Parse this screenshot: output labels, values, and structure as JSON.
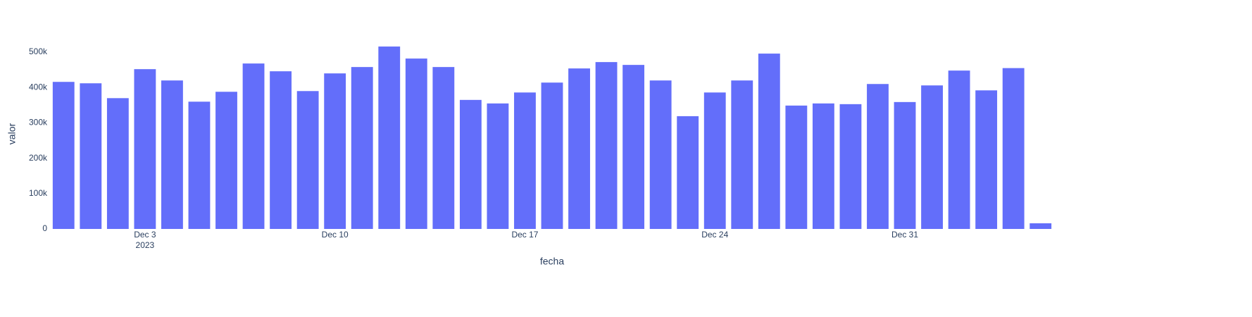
{
  "chart_data": {
    "type": "bar",
    "x_label": "fecha",
    "y_label": "valor",
    "x": [
      "2023-11-30",
      "2023-12-01",
      "2023-12-02",
      "2023-12-03",
      "2023-12-04",
      "2023-12-05",
      "2023-12-06",
      "2023-12-07",
      "2023-12-08",
      "2023-12-09",
      "2023-12-10",
      "2023-12-11",
      "2023-12-12",
      "2023-12-13",
      "2023-12-14",
      "2023-12-15",
      "2023-12-16",
      "2023-12-17",
      "2023-12-18",
      "2023-12-19",
      "2023-12-20",
      "2023-12-21",
      "2023-12-22",
      "2023-12-23",
      "2023-12-24",
      "2023-12-25",
      "2023-12-26",
      "2023-12-27",
      "2023-12-28",
      "2023-12-29",
      "2023-12-30",
      "2023-12-31",
      "2024-01-01",
      "2024-01-02",
      "2024-01-03",
      "2024-01-04",
      "2024-01-05"
    ],
    "values": [
      416000,
      412000,
      370000,
      452000,
      420000,
      360000,
      388000,
      468000,
      446000,
      390000,
      440000,
      458000,
      516000,
      482000,
      458000,
      365000,
      355000,
      386000,
      414000,
      454000,
      472000,
      464000,
      420000,
      319000,
      386000,
      420000,
      496000,
      349000,
      355000,
      353000,
      410000,
      359000,
      406000,
      448000,
      392000,
      455000,
      16000
    ],
    "color": "#636efa",
    "xlim": [
      "2023-11-29T12:00",
      "2024-01-05T12:00"
    ],
    "xticks": [
      {
        "value": "2023-12-03",
        "label": "Dec 3\n2023"
      },
      {
        "value": "2023-12-10",
        "label": "Dec 10"
      },
      {
        "value": "2023-12-17",
        "label": "Dec 17"
      },
      {
        "value": "2023-12-24",
        "label": "Dec 24"
      },
      {
        "value": "2023-12-31",
        "label": "Dec 31"
      }
    ],
    "ylim": [
      0,
      542000
    ],
    "yticks": [
      0,
      {
        "value": 100000,
        "label": "100k"
      },
      {
        "value": 200000,
        "label": "200k"
      },
      {
        "value": 300000,
        "label": "300k"
      },
      {
        "value": 400000,
        "label": "400k"
      },
      {
        "value": 500000,
        "label": "500k"
      }
    ],
    "grid": false
  }
}
